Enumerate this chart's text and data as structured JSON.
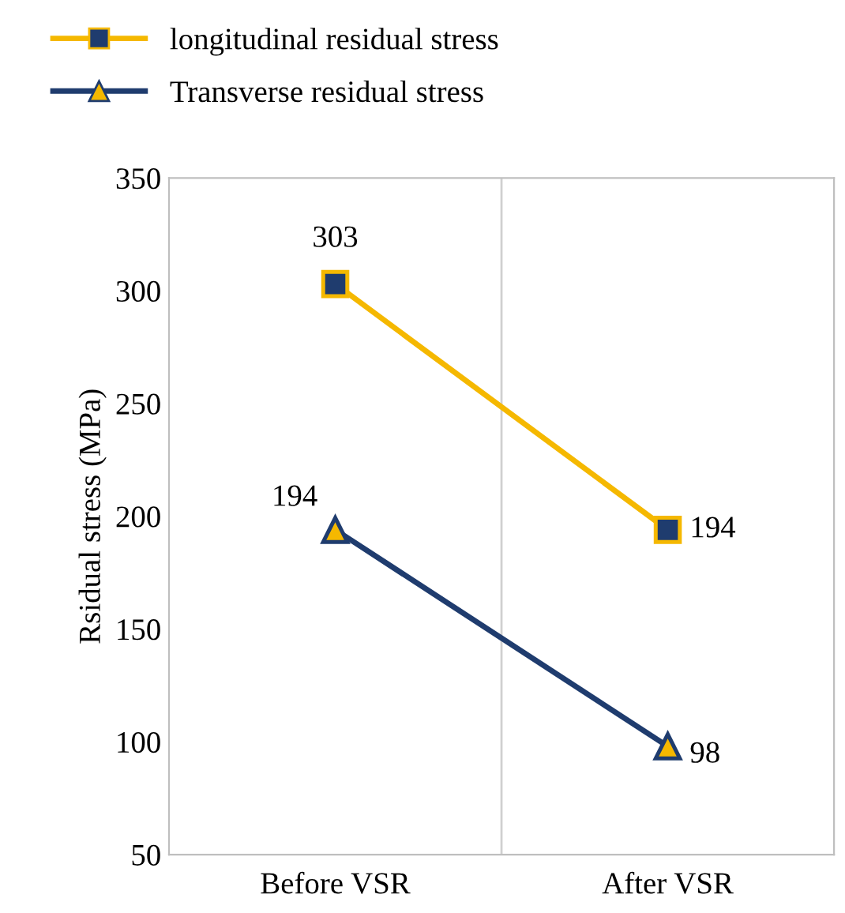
{
  "chart_data": {
    "type": "line",
    "ylabel": "Rsidual stress (MPa)",
    "categories": [
      "Before VSR",
      "After VSR"
    ],
    "series": [
      {
        "name": "longitudinal residual stress",
        "color": "#f5b800",
        "values": [
          303,
          194
        ],
        "marker": "square"
      },
      {
        "name": "Transverse residual stress",
        "color": "#1f3c6e",
        "values": [
          194,
          98
        ],
        "marker": "triangle"
      }
    ],
    "ylim": [
      50,
      350
    ],
    "yticks": [
      50,
      100,
      150,
      200,
      250,
      300,
      350
    ],
    "grid": "x",
    "legend": "top left",
    "data_labels": true,
    "line_style": "solid"
  }
}
